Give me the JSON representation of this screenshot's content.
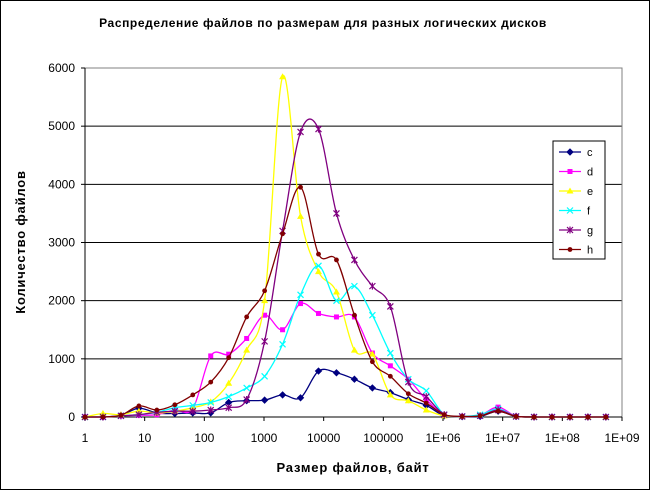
{
  "chart_data": {
    "type": "line",
    "title": "Распределение файлов по размерам для разных логических дисков",
    "xlabel": "Размер файлов, байт",
    "ylabel": "Количество файлов",
    "x_scale": "log",
    "xlim": [
      1,
      1000000000
    ],
    "ylim": [
      0,
      6000
    ],
    "x_tick_labels": [
      "1",
      "10",
      "100",
      "1000",
      "10000",
      "100000",
      "1E+06",
      "1E+07",
      "1E+08",
      "1E+09"
    ],
    "y_tick_labels": [
      "0",
      "1000",
      "2000",
      "3000",
      "4000",
      "5000",
      "6000"
    ],
    "x_ticks": [
      1,
      10,
      100,
      1000,
      10000,
      100000,
      1000000,
      10000000,
      100000000,
      1000000000
    ],
    "y_ticks": [
      0,
      1000,
      2000,
      3000,
      4000,
      5000,
      6000
    ],
    "grid": "horizontal",
    "legend_position": "right",
    "x": [
      1,
      2,
      4,
      8,
      16,
      32,
      64,
      128,
      256,
      512,
      1024,
      2048,
      4096,
      8192,
      16384,
      32768,
      65536,
      131072,
      262144,
      524288,
      1048576,
      2097152,
      4194304,
      8388608,
      16777216,
      33554432,
      67108864,
      134217728,
      268435456,
      536870912
    ],
    "series": [
      {
        "name": "c",
        "color": "#000080",
        "marker": "diamond",
        "values": [
          0,
          0,
          30,
          150,
          70,
          60,
          70,
          70,
          250,
          280,
          290,
          380,
          330,
          790,
          760,
          650,
          500,
          420,
          300,
          200,
          20,
          5,
          10,
          100,
          10,
          0,
          0,
          0,
          0,
          0
        ]
      },
      {
        "name": "d",
        "color": "#ff00ff",
        "marker": "square",
        "values": [
          0,
          0,
          20,
          30,
          40,
          120,
          140,
          1050,
          1080,
          1350,
          1750,
          1500,
          1950,
          1780,
          1720,
          1720,
          1100,
          880,
          650,
          300,
          30,
          10,
          30,
          170,
          10,
          0,
          0,
          0,
          0,
          0
        ]
      },
      {
        "name": "e",
        "color": "#ffff00",
        "marker": "triangle",
        "values": [
          0,
          60,
          40,
          100,
          70,
          100,
          160,
          260,
          580,
          1150,
          2000,
          5850,
          3450,
          2500,
          2150,
          1150,
          1080,
          380,
          280,
          120,
          20,
          10,
          30,
          120,
          10,
          0,
          0,
          0,
          0,
          0
        ]
      },
      {
        "name": "f",
        "color": "#00ffff",
        "marker": "x",
        "values": [
          0,
          0,
          20,
          40,
          80,
          160,
          200,
          250,
          350,
          500,
          700,
          1250,
          2100,
          2600,
          2000,
          2250,
          1750,
          1100,
          650,
          450,
          40,
          10,
          40,
          140,
          10,
          0,
          0,
          0,
          0,
          0
        ]
      },
      {
        "name": "g",
        "color": "#800080",
        "marker": "star",
        "values": [
          0,
          0,
          20,
          40,
          80,
          100,
          100,
          120,
          160,
          300,
          1300,
          3200,
          4900,
          4950,
          3500,
          2700,
          2250,
          1900,
          600,
          350,
          40,
          10,
          20,
          120,
          10,
          0,
          0,
          0,
          0,
          0
        ]
      },
      {
        "name": "h",
        "color": "#800000",
        "marker": "circle",
        "values": [
          0,
          0,
          30,
          190,
          120,
          210,
          380,
          600,
          1020,
          1720,
          2170,
          3150,
          3950,
          2800,
          2700,
          1750,
          950,
          700,
          400,
          240,
          40,
          10,
          20,
          100,
          10,
          0,
          0,
          0,
          0,
          0
        ]
      }
    ]
  }
}
